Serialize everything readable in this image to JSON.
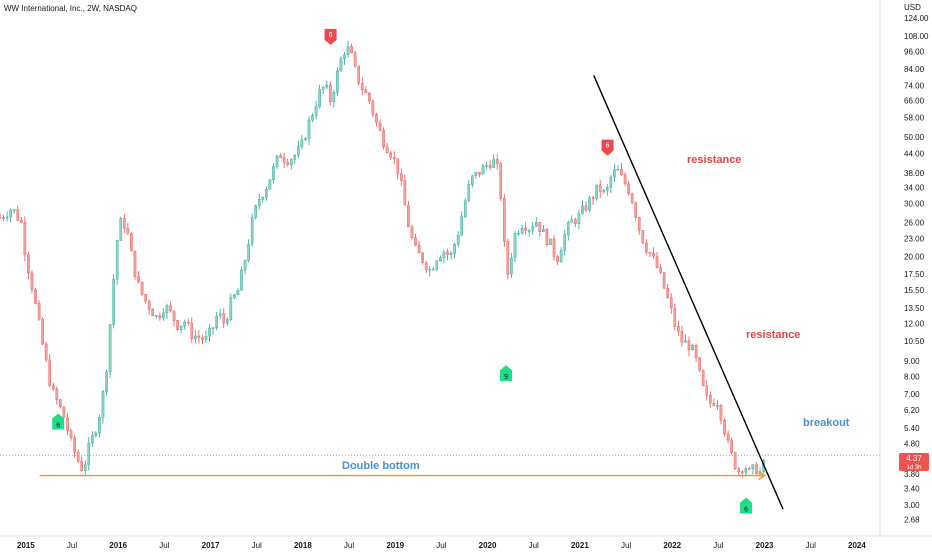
{
  "header": {
    "title": "WW International, Inc., 2W, NASDAQ",
    "currency": "USD"
  },
  "colors": {
    "up": "#26a69a",
    "up_body": "#8fd3c3",
    "down": "#ef5350",
    "down_body": "#f4a09e",
    "annotation_red": "#e2434b",
    "annotation_blue": "#4a90d9",
    "trendline": "#000000",
    "support_line": "#f0941f",
    "signal_green": "#22dd88",
    "signal_red": "#f0474f"
  },
  "annotations": {
    "resistance_top": "resistance",
    "resistance_bottom": "resistance",
    "breakout": "breakout",
    "double_bottom": "Double bottom"
  },
  "price_label": {
    "value": "4.37",
    "countdown": "1d 3h"
  },
  "signals": [
    {
      "label": "6",
      "kind": "green",
      "date": "2015.35",
      "price": 5.8
    },
    {
      "label": "6",
      "kind": "red",
      "date": "2018.30",
      "price": 105
    },
    {
      "label": "9",
      "kind": "green",
      "date": "2020.20",
      "price": 8.4
    },
    {
      "label": "6",
      "kind": "red",
      "date": "2021.30",
      "price": 45
    },
    {
      "label": "6",
      "kind": "green",
      "date": "2022.80",
      "price": 3.05
    }
  ],
  "chart_data": {
    "type": "candlestick",
    "title": "WW International, Inc., 2W, NASDAQ",
    "y_scale": "log",
    "ylim": [
      2.55,
      128
    ],
    "y_ticks": [
      124.0,
      108.0,
      96.0,
      84.0,
      74.0,
      66.0,
      58.0,
      50.0,
      44.0,
      38.0,
      34.0,
      30.0,
      26.0,
      23.0,
      20.0,
      17.5,
      15.5,
      13.5,
      12.0,
      10.5,
      9.0,
      8.0,
      7.0,
      6.2,
      5.4,
      4.8,
      3.8,
      3.4,
      3.0,
      2.68
    ],
    "y_tick_labels": [
      "124.00",
      "108.00",
      "96.00",
      "84.00",
      "74.00",
      "66.00",
      "58.00",
      "50.00",
      "44.00",
      "38.00",
      "34.00",
      "30.00",
      "26.00",
      "23.00",
      "20.00",
      "17.50",
      "15.50",
      "13.50",
      "12.00",
      "10.50",
      "9.00",
      "8.00",
      "7.00",
      "6.20",
      "5.40",
      "4.80",
      "3.80",
      "3.40",
      "3.00",
      "2.68"
    ],
    "x_ticks": [
      "2015",
      "Jul",
      "2016",
      "Jul",
      "2017",
      "Jul",
      "2018",
      "Jul",
      "2019",
      "Jul",
      "2020",
      "Jul",
      "2021",
      "Jul",
      "2022",
      "Jul",
      "2023",
      "Jul",
      "2024"
    ],
    "x_tick_values": [
      2015.0,
      2015.5,
      2016.0,
      2016.5,
      2017.0,
      2017.5,
      2018.0,
      2018.5,
      2019.0,
      2019.5,
      2020.0,
      2020.5,
      2021.0,
      2021.5,
      2022.0,
      2022.5,
      2023.0,
      2023.5,
      2024.0
    ],
    "x_range": [
      2014.72,
      2024.25
    ],
    "last_price": 4.37,
    "price_path": [
      [
        2014.72,
        27
      ],
      [
        2014.85,
        29
      ],
      [
        2014.95,
        26
      ],
      [
        2015.0,
        20
      ],
      [
        2015.05,
        17
      ],
      [
        2015.12,
        13
      ],
      [
        2015.2,
        9.5
      ],
      [
        2015.28,
        7.2
      ],
      [
        2015.35,
        6.5
      ],
      [
        2015.42,
        5.8
      ],
      [
        2015.48,
        4.9
      ],
      [
        2015.55,
        4.3
      ],
      [
        2015.62,
        3.9
      ],
      [
        2015.68,
        4.6
      ],
      [
        2015.75,
        5.3
      ],
      [
        2015.82,
        6.4
      ],
      [
        2015.88,
        9.0
      ],
      [
        2015.93,
        14
      ],
      [
        2015.98,
        22
      ],
      [
        2016.04,
        27
      ],
      [
        2016.1,
        24
      ],
      [
        2016.16,
        19
      ],
      [
        2016.22,
        16
      ],
      [
        2016.28,
        14.5
      ],
      [
        2016.35,
        13.5
      ],
      [
        2016.42,
        12.5
      ],
      [
        2016.5,
        13.8
      ],
      [
        2016.58,
        12.8
      ],
      [
        2016.65,
        11.8
      ],
      [
        2016.72,
        12.2
      ],
      [
        2016.8,
        11.0
      ],
      [
        2016.88,
        10.8
      ],
      [
        2016.95,
        10.6
      ],
      [
        2017.02,
        11.5
      ],
      [
        2017.08,
        13.0
      ],
      [
        2017.15,
        12.0
      ],
      [
        2017.22,
        14.0
      ],
      [
        2017.3,
        15.5
      ],
      [
        2017.38,
        20
      ],
      [
        2017.45,
        26
      ],
      [
        2017.52,
        31
      ],
      [
        2017.6,
        34
      ],
      [
        2017.68,
        39
      ],
      [
        2017.75,
        44
      ],
      [
        2017.82,
        42
      ],
      [
        2017.9,
        43
      ],
      [
        2017.98,
        46
      ],
      [
        2018.05,
        54
      ],
      [
        2018.12,
        62
      ],
      [
        2018.18,
        70
      ],
      [
        2018.24,
        74
      ],
      [
        2018.3,
        66
      ],
      [
        2018.36,
        78
      ],
      [
        2018.42,
        92
      ],
      [
        2018.47,
        100
      ],
      [
        2018.52,
        94
      ],
      [
        2018.58,
        80
      ],
      [
        2018.65,
        72
      ],
      [
        2018.72,
        66
      ],
      [
        2018.8,
        55
      ],
      [
        2018.88,
        48
      ],
      [
        2018.96,
        44
      ],
      [
        2019.04,
        38
      ],
      [
        2019.1,
        30
      ],
      [
        2019.16,
        24
      ],
      [
        2019.22,
        21
      ],
      [
        2019.3,
        19.5
      ],
      [
        2019.38,
        18
      ],
      [
        2019.45,
        20
      ],
      [
        2019.52,
        21
      ],
      [
        2019.6,
        20
      ],
      [
        2019.68,
        24
      ],
      [
        2019.75,
        30
      ],
      [
        2019.82,
        36
      ],
      [
        2019.9,
        38
      ],
      [
        2019.98,
        40
      ],
      [
        2020.05,
        42
      ],
      [
        2020.1,
        40
      ],
      [
        2020.14,
        33
      ],
      [
        2020.18,
        22
      ],
      [
        2020.21,
        17
      ],
      [
        2020.24,
        19
      ],
      [
        2020.3,
        24
      ],
      [
        2020.38,
        26
      ],
      [
        2020.45,
        25
      ],
      [
        2020.52,
        26.5
      ],
      [
        2020.6,
        24
      ],
      [
        2020.68,
        22
      ],
      [
        2020.75,
        19.5
      ],
      [
        2020.82,
        23
      ],
      [
        2020.9,
        26
      ],
      [
        2020.98,
        27
      ],
      [
        2021.05,
        29
      ],
      [
        2021.12,
        31
      ],
      [
        2021.2,
        34
      ],
      [
        2021.28,
        32
      ],
      [
        2021.34,
        37
      ],
      [
        2021.4,
        39
      ],
      [
        2021.46,
        36
      ],
      [
        2021.52,
        34
      ],
      [
        2021.58,
        30
      ],
      [
        2021.64,
        25
      ],
      [
        2021.7,
        22
      ],
      [
        2021.78,
        20
      ],
      [
        2021.85,
        18
      ],
      [
        2021.92,
        15.5
      ],
      [
        2021.98,
        13.5
      ],
      [
        2022.04,
        11.5
      ],
      [
        2022.1,
        10.5
      ],
      [
        2022.18,
        10.2
      ],
      [
        2022.24,
        9.5
      ],
      [
        2022.3,
        8.0
      ],
      [
        2022.36,
        6.8
      ],
      [
        2022.42,
        6.5
      ],
      [
        2022.48,
        6.8
      ],
      [
        2022.54,
        5.8
      ],
      [
        2022.6,
        4.8
      ],
      [
        2022.66,
        4.2
      ],
      [
        2022.72,
        3.9
      ],
      [
        2022.78,
        4.1
      ],
      [
        2022.84,
        3.8
      ],
      [
        2022.9,
        4.0
      ],
      [
        2022.96,
        3.8
      ],
      [
        2023.02,
        4.37
      ]
    ],
    "lines": [
      {
        "name": "",
        "kind": "trendline",
        "from": [
          2021.15,
          80
        ],
        "to": [
          2023.2,
          2.9
        ]
      },
      {
        "name": "",
        "kind": "support",
        "from": [
          2015.15,
          3.75
        ],
        "to": [
          2023.0,
          3.75
        ]
      }
    ]
  }
}
